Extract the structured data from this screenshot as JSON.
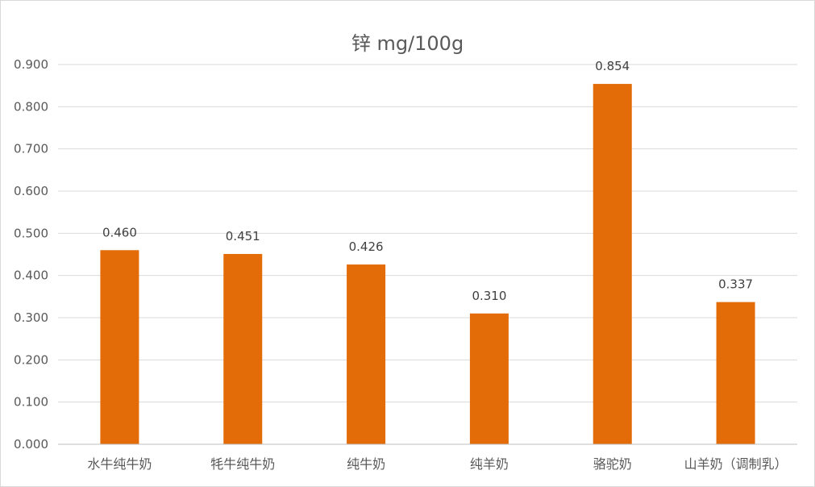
{
  "chart_data": {
    "type": "bar",
    "title": "锌 mg/100g",
    "categories": [
      "水牛纯牛奶",
      "牦牛纯牛奶",
      "纯牛奶",
      "纯羊奶",
      "骆驼奶",
      "山羊奶（调制乳）"
    ],
    "values": [
      0.46,
      0.451,
      0.426,
      0.31,
      0.854,
      0.337
    ],
    "value_labels": [
      "0.460",
      "0.451",
      "0.426",
      "0.310",
      "0.854",
      "0.337"
    ],
    "y_ticks": [
      "0.000",
      "0.100",
      "0.200",
      "0.300",
      "0.400",
      "0.500",
      "0.600",
      "0.700",
      "0.800",
      "0.900"
    ],
    "ylim": [
      0,
      0.9
    ],
    "grid": true,
    "bar_color": "#E36C09"
  }
}
